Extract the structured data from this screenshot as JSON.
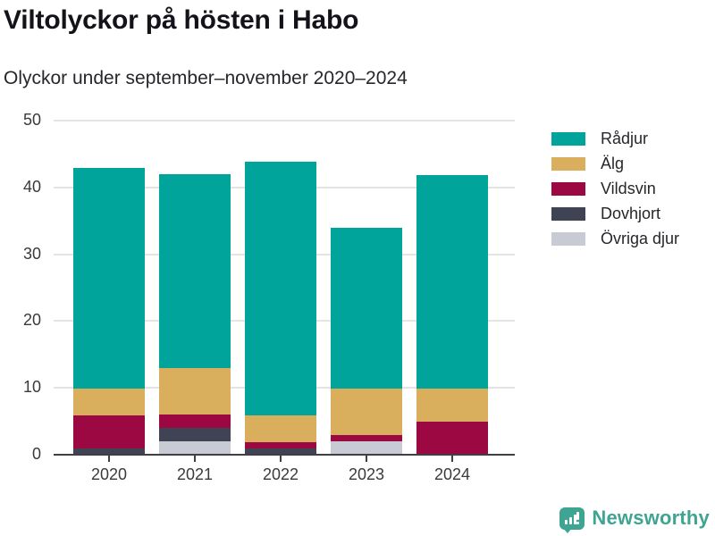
{
  "title": "Viltolyckor på hösten i Habo",
  "subtitle": "Olyckor under september–november 2020–2024",
  "chart_data": {
    "type": "bar",
    "stacked": true,
    "title": "Viltolyckor på hösten i Habo",
    "subtitle": "Olyckor under september–november 2020–2024",
    "categories": [
      "2020",
      "2021",
      "2022",
      "2023",
      "2024"
    ],
    "series": [
      {
        "name": "Rådjur",
        "color": "#00A49A",
        "values": [
          33,
          29,
          38,
          24,
          32
        ]
      },
      {
        "name": "Älg",
        "color": "#D9AE5D",
        "values": [
          4,
          7,
          4,
          7,
          5
        ]
      },
      {
        "name": "Vildsvin",
        "color": "#9C0841",
        "values": [
          5,
          2,
          1,
          1,
          5
        ]
      },
      {
        "name": "Dovhjort",
        "color": "#404353",
        "values": [
          1,
          2,
          1,
          0,
          0
        ]
      },
      {
        "name": "Övriga djur",
        "color": "#C8CBD4",
        "values": [
          0,
          2,
          0,
          2,
          0
        ]
      }
    ],
    "totals": [
      43,
      42,
      44,
      34,
      42
    ],
    "stack_order_bottom_to_top": [
      "Övriga djur",
      "Dovhjort",
      "Vildsvin",
      "Älg",
      "Rådjur"
    ],
    "ylim": [
      0,
      50
    ],
    "yticks": [
      0,
      10,
      20,
      30,
      40,
      50
    ],
    "grid": "horizontal",
    "legend_position": "right"
  },
  "colors": {
    "axis": "#3F3F44",
    "gridline": "#E4E4E6",
    "tick_text": "#3A3A3A",
    "title_text": "#131319",
    "logo": "#3FA492"
  },
  "branding": {
    "logo_text": "Newsworthy",
    "logo_icon": "speech-bubble-bar-chart"
  }
}
